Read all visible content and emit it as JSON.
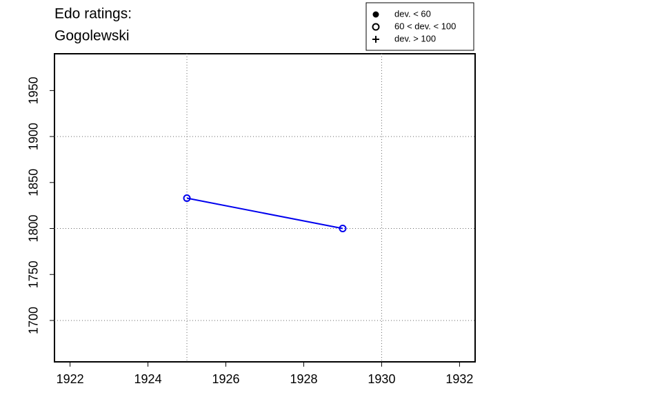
{
  "chart_data": {
    "type": "line",
    "title_lines": [
      "Edo ratings:",
      "Gogolewski"
    ],
    "x": [
      1925,
      1929
    ],
    "series": [
      {
        "color": "#0000ee",
        "marker": "open-circle",
        "values": [
          1833,
          1800
        ]
      }
    ],
    "xlim": [
      1921.6,
      1932.4
    ],
    "xticks": [
      1922,
      1924,
      1926,
      1928,
      1930,
      1932
    ],
    "ylim": [
      1655,
      1990
    ],
    "yticks": [
      1700,
      1750,
      1800,
      1850,
      1900,
      1950
    ],
    "xgrid": [
      1925,
      1930
    ],
    "ygrid": [
      1700,
      1800,
      1900
    ],
    "legend": [
      {
        "label": "dev. < 60",
        "marker": "filled-circle"
      },
      {
        "label": "60 < dev. < 100",
        "marker": "open-circle"
      },
      {
        "label": "dev. > 100",
        "marker": "plus"
      }
    ]
  }
}
